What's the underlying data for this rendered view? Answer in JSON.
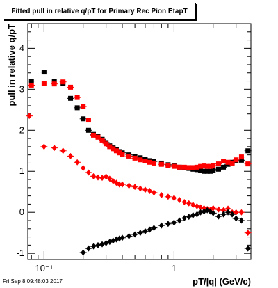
{
  "chart_data": {
    "type": "scatter",
    "title": "Fitted pull in relative q/pT for Primary Rec Pion EtapT",
    "xlabel": "pT/|q| (GeV/c)",
    "ylabel": "pull in relative q/pT",
    "x_scale": "log",
    "xlim": [
      0.075,
      3.9
    ],
    "ylim": [
      -1.15,
      4.6
    ],
    "x_ticks": [
      {
        "value": 0.1,
        "label": "10⁻¹"
      },
      {
        "value": 1,
        "label": "1"
      }
    ],
    "y_ticks": [
      -1,
      0,
      1,
      2,
      3,
      4
    ],
    "grid": false,
    "series": [
      {
        "marker": "square",
        "color": "#000000",
        "x": [
          0.08,
          0.1,
          0.12,
          0.14,
          0.16,
          0.18,
          0.2,
          0.22,
          0.24,
          0.26,
          0.28,
          0.3,
          0.32,
          0.34,
          0.36,
          0.38,
          0.4,
          0.45,
          0.5,
          0.55,
          0.6,
          0.65,
          0.7,
          0.8,
          0.9,
          1.0,
          1.1,
          1.2,
          1.3,
          1.4,
          1.5,
          1.6,
          1.7,
          1.8,
          1.9,
          2.0,
          2.2,
          2.4,
          2.6,
          2.8,
          3.0,
          3.3,
          3.7
        ],
        "y": [
          3.2,
          3.42,
          3.2,
          3.15,
          2.78,
          2.55,
          2.28,
          2.0,
          1.9,
          1.86,
          1.78,
          1.7,
          1.62,
          1.57,
          1.53,
          1.48,
          1.45,
          1.4,
          1.36,
          1.33,
          1.3,
          1.26,
          1.24,
          1.2,
          1.16,
          1.13,
          1.1,
          1.09,
          1.07,
          1.05,
          1.04,
          1.02,
          1.0,
          1.0,
          1.0,
          1.02,
          1.05,
          1.1,
          1.17,
          1.22,
          1.25,
          1.27,
          1.5
        ]
      },
      {
        "marker": "square",
        "color": "#ff0000",
        "x": [
          0.08,
          0.1,
          0.12,
          0.14,
          0.16,
          0.18,
          0.2,
          0.22,
          0.24,
          0.26,
          0.28,
          0.3,
          0.32,
          0.34,
          0.36,
          0.38,
          0.4,
          0.45,
          0.5,
          0.55,
          0.6,
          0.65,
          0.7,
          0.8,
          0.9,
          1.0,
          1.1,
          1.2,
          1.3,
          1.4,
          1.5,
          1.6,
          1.7,
          1.8,
          1.9,
          2.0,
          2.2,
          2.4,
          2.6,
          2.8,
          3.0,
          3.3,
          3.7
        ],
        "y": [
          3.1,
          3.15,
          3.13,
          3.18,
          3.05,
          2.8,
          2.58,
          2.25,
          1.88,
          1.83,
          1.76,
          1.67,
          1.6,
          1.55,
          1.5,
          1.45,
          1.42,
          1.37,
          1.32,
          1.28,
          1.25,
          1.22,
          1.2,
          1.17,
          1.14,
          1.12,
          1.1,
          1.1,
          1.09,
          1.09,
          1.1,
          1.12,
          1.13,
          1.12,
          1.12,
          1.14,
          1.18,
          1.25,
          1.22,
          1.2,
          1.28,
          1.35,
          1.18
        ]
      },
      {
        "marker": "diamond",
        "color": "#ff0000",
        "x": [
          0.077,
          0.1,
          0.12,
          0.14,
          0.16,
          0.18,
          0.2,
          0.22,
          0.24,
          0.26,
          0.28,
          0.3,
          0.32,
          0.34,
          0.36,
          0.38,
          0.4,
          0.45,
          0.5,
          0.55,
          0.6,
          0.65,
          0.7,
          0.8,
          0.9,
          1.0,
          1.1,
          1.2,
          1.3,
          1.4,
          1.5,
          1.6,
          1.7,
          1.8,
          1.9,
          2.0,
          2.2,
          2.4,
          2.6,
          2.8,
          3.0,
          3.3,
          3.7
        ],
        "y": [
          2.35,
          1.6,
          1.57,
          1.5,
          1.37,
          1.22,
          1.08,
          0.97,
          0.88,
          0.85,
          0.84,
          0.87,
          0.82,
          0.76,
          0.72,
          0.68,
          0.68,
          0.65,
          0.62,
          0.58,
          0.55,
          0.52,
          0.48,
          0.42,
          0.38,
          0.35,
          0.3,
          0.25,
          0.22,
          0.18,
          0.15,
          0.12,
          0.1,
          0.08,
          0.06,
          0.1,
          0.07,
          0.05,
          0.09,
          0.0,
          0.0,
          0.0,
          -0.5
        ]
      },
      {
        "marker": "diamond",
        "color": "#000000",
        "x": [
          0.2,
          0.22,
          0.24,
          0.26,
          0.28,
          0.3,
          0.32,
          0.34,
          0.36,
          0.38,
          0.4,
          0.45,
          0.5,
          0.55,
          0.6,
          0.65,
          0.7,
          0.8,
          0.9,
          1.0,
          1.1,
          1.2,
          1.3,
          1.4,
          1.5,
          1.6,
          1.7,
          1.8,
          1.9,
          2.0,
          2.2,
          2.4,
          2.6,
          2.8,
          3.0,
          3.3,
          3.7
        ],
        "y": [
          -0.98,
          -0.88,
          -0.83,
          -0.8,
          -0.78,
          -0.75,
          -0.72,
          -0.69,
          -0.66,
          -0.64,
          -0.62,
          -0.58,
          -0.54,
          -0.5,
          -0.46,
          -0.42,
          -0.38,
          -0.32,
          -0.28,
          -0.25,
          -0.2,
          -0.14,
          -0.11,
          -0.07,
          -0.05,
          0.0,
          0.02,
          0.05,
          0.02,
          -0.02,
          -0.1,
          -0.05,
          0.0,
          -0.05,
          -0.15,
          -0.2,
          -0.88
        ]
      }
    ]
  },
  "timestamp": "Fri Sep  8 09:48:03 2017"
}
